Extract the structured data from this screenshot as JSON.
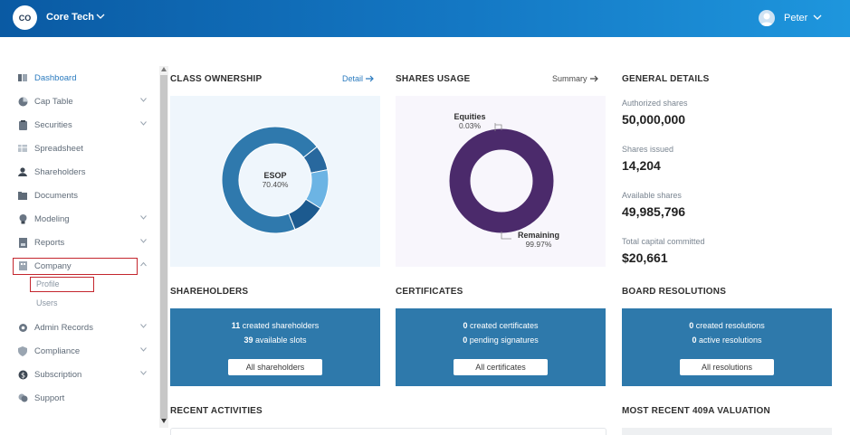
{
  "header": {
    "logo_text": "CO",
    "company_name": "Core Tech",
    "user_name": "Peter"
  },
  "sidebar": {
    "items": [
      {
        "label": "Dashboard",
        "icon": "dashboard-icon",
        "active": true
      },
      {
        "label": "Cap Table",
        "icon": "pie-chart-icon",
        "chevron": "down"
      },
      {
        "label": "Securities",
        "icon": "clipboard-icon",
        "chevron": "down"
      },
      {
        "label": "Spreadsheet",
        "icon": "table-icon"
      },
      {
        "label": "Shareholders",
        "icon": "person-icon"
      },
      {
        "label": "Documents",
        "icon": "folder-icon"
      },
      {
        "label": "Modeling",
        "icon": "lightbulb-icon",
        "chevron": "down"
      },
      {
        "label": "Reports",
        "icon": "report-icon",
        "chevron": "down"
      },
      {
        "label": "Company",
        "icon": "building-icon",
        "chevron": "up"
      },
      {
        "label": "Admin Records",
        "icon": "gear-icon",
        "chevron": "down"
      },
      {
        "label": "Compliance",
        "icon": "shield-icon",
        "chevron": "down"
      },
      {
        "label": "Subscription",
        "icon": "dollar-icon",
        "chevron": "down"
      },
      {
        "label": "Support",
        "icon": "support-icon"
      }
    ],
    "company_sub": [
      {
        "label": "Profile"
      },
      {
        "label": "Users"
      }
    ]
  },
  "class_ownership": {
    "title": "CLASS OWNERSHIP",
    "link": "Detail",
    "center_name": "ESOP",
    "center_value": "70.40%",
    "slices": [
      70.4,
      10.0,
      12.0,
      7.6
    ],
    "colors": [
      "#2f79ad",
      "#1c5a8f",
      "#6cb4e4",
      "#28689e"
    ]
  },
  "shares_usage": {
    "title": "SHARES USAGE",
    "link": "Summary",
    "equities_label": "Equities",
    "equities_value": "0.03%",
    "remaining_label": "Remaining",
    "remaining_value": "99.97%",
    "color": "#4b2a6b"
  },
  "general_details": {
    "title": "GENERAL DETAILS",
    "authorized_label": "Authorized shares",
    "authorized_value": "50,000,000",
    "issued_label": "Shares issued",
    "issued_value": "14,204",
    "available_label": "Available shares",
    "available_value": "49,985,796",
    "capital_label": "Total capital committed",
    "capital_value": "$20,661"
  },
  "shareholders": {
    "title": "SHAREHOLDERS",
    "line1_num": "11",
    "line1_text": " created shareholders",
    "line2_num": "39",
    "line2_text": " available slots",
    "button": "All shareholders"
  },
  "certificates": {
    "title": "CERTIFICATES",
    "line1_num": "0",
    "line1_text": " created certificates",
    "line2_num": "0",
    "line2_text": " pending signatures",
    "button": "All certificates"
  },
  "board_resolutions": {
    "title": "BOARD RESOLUTIONS",
    "line1_num": "0",
    "line1_text": " created resolutions",
    "line2_num": "0",
    "line2_text": " active resolutions",
    "button": "All resolutions"
  },
  "recent_activities": {
    "title": "RECENT ACTIVITIES"
  },
  "valuation": {
    "title": "MOST RECENT 409A VALUATION"
  },
  "colors": {
    "brand": "#1478c4",
    "card": "#2e79ab",
    "highlight": "#c4262e"
  }
}
